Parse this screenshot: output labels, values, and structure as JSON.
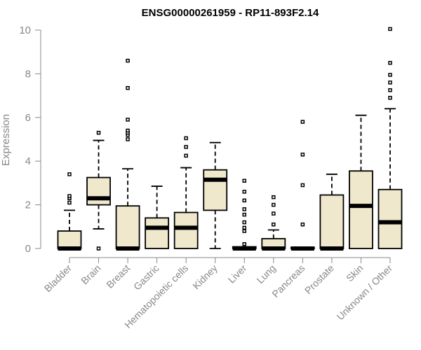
{
  "chart_data": {
    "type": "boxplot",
    "title": "ENSG00000261959 - RP11-893F2.14",
    "xlabel": "",
    "ylabel": "Expression",
    "ylim": [
      0,
      10
    ],
    "yticks": [
      0,
      2,
      4,
      6,
      8,
      10
    ],
    "grid": false,
    "categories": [
      "Bladder",
      "Brain",
      "Breast",
      "Gastric",
      "Hematopoietic cells",
      "Kidney",
      "Liver",
      "Lung",
      "Pancreas",
      "Prostate",
      "Skin",
      "Unknown / Other"
    ],
    "boxes": [
      {
        "q1": 0.0,
        "median": 0.0,
        "q3": 0.8,
        "whisker_low": 0.0,
        "whisker_high": 1.75,
        "outliers": [
          2.1,
          2.3,
          2.4,
          3.4
        ]
      },
      {
        "q1": 2.0,
        "median": 2.3,
        "q3": 3.25,
        "whisker_low": 0.9,
        "whisker_high": 4.95,
        "outliers": [
          0.0,
          5.3
        ]
      },
      {
        "q1": 0.0,
        "median": 0.0,
        "q3": 1.95,
        "whisker_low": 0.0,
        "whisker_high": 3.65,
        "outliers": [
          5.0,
          5.2,
          5.3,
          5.4,
          5.9,
          7.35,
          8.6
        ]
      },
      {
        "q1": 0.0,
        "median": 0.95,
        "q3": 1.4,
        "whisker_low": 0.0,
        "whisker_high": 2.85,
        "outliers": []
      },
      {
        "q1": 0.0,
        "median": 0.95,
        "q3": 1.65,
        "whisker_low": 0.0,
        "whisker_high": 3.7,
        "outliers": [
          4.25,
          4.65,
          5.05
        ]
      },
      {
        "q1": 1.75,
        "median": 3.15,
        "q3": 3.6,
        "whisker_low": 0.0,
        "whisker_high": 4.85,
        "outliers": []
      },
      {
        "q1": 0.0,
        "median": 0.0,
        "q3": 0.08,
        "whisker_low": 0.0,
        "whisker_high": 0.08,
        "outliers": [
          0.2,
          0.8,
          0.95,
          1.2,
          1.55,
          1.8,
          2.2,
          2.6,
          3.1
        ]
      },
      {
        "q1": 0.0,
        "median": 0.0,
        "q3": 0.45,
        "whisker_low": 0.0,
        "whisker_high": 0.85,
        "outliers": [
          1.1,
          1.6,
          2.0,
          2.35
        ]
      },
      {
        "q1": 0.0,
        "median": 0.0,
        "q3": 0.05,
        "whisker_low": 0.0,
        "whisker_high": 0.05,
        "outliers": [
          1.1,
          2.9,
          4.3,
          5.8
        ]
      },
      {
        "q1": 0.0,
        "median": 0.0,
        "q3": 2.45,
        "whisker_low": 0.0,
        "whisker_high": 3.4,
        "outliers": []
      },
      {
        "q1": 0.0,
        "median": 1.95,
        "q3": 3.55,
        "whisker_low": 0.0,
        "whisker_high": 6.1,
        "outliers": []
      },
      {
        "q1": 0.0,
        "median": 1.2,
        "q3": 2.7,
        "whisker_low": 0.0,
        "whisker_high": 6.4,
        "outliers": [
          6.9,
          7.25,
          7.6,
          7.95,
          8.5,
          10.05
        ]
      }
    ],
    "colors": {
      "box_fill": "#efe8cd",
      "stroke": "#000000",
      "axis": "#888888"
    }
  }
}
